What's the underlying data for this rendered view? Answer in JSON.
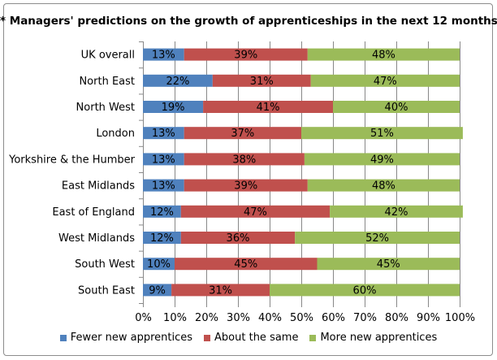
{
  "chart_data": {
    "type": "bar",
    "orientation": "horizontal",
    "stacked": "percent",
    "title": "* Managers' predictions on the growth of apprenticeships in the next 12 months",
    "categories": [
      "UK overall",
      "North East",
      "North West",
      "London",
      "Yorkshire & the Humber",
      "East Midlands",
      "East of England",
      "West Midlands",
      "South West",
      "South East"
    ],
    "series": [
      {
        "name": "Fewer new apprentices",
        "color": "#4f81bd",
        "values": [
          13,
          22,
          19,
          13,
          13,
          13,
          12,
          12,
          10,
          9
        ]
      },
      {
        "name": "About the same",
        "color": "#c0504d",
        "values": [
          39,
          31,
          41,
          37,
          38,
          39,
          47,
          36,
          45,
          31
        ]
      },
      {
        "name": "More new apprentices",
        "color": "#9bbb59",
        "values": [
          48,
          47,
          40,
          51,
          49,
          48,
          42,
          52,
          45,
          60
        ]
      }
    ],
    "xlim": [
      0,
      100
    ],
    "xticks": [
      "0%",
      "10%",
      "20%",
      "30%",
      "40%",
      "50%",
      "60%",
      "70%",
      "80%",
      "90%",
      "100%"
    ],
    "grid": true,
    "legend": "bottom"
  }
}
